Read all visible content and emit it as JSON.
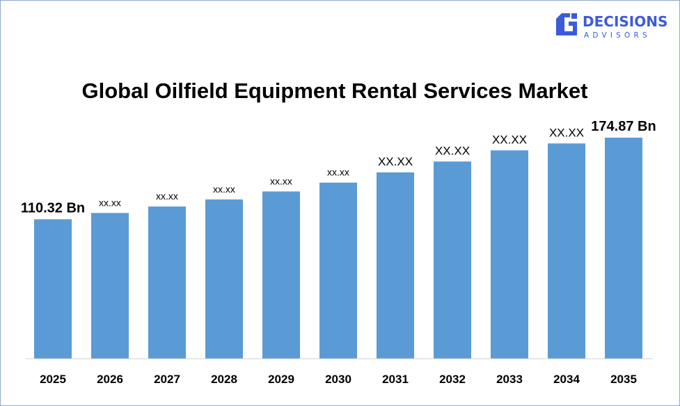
{
  "brand": {
    "name_line1": "DECISIONS",
    "name_line2": "ADVISORS",
    "color": "#3b5bdb"
  },
  "chart_data": {
    "type": "bar",
    "title": "Global Oilfield Equipment Rental Services Market",
    "xlabel": "",
    "ylabel": "",
    "categories": [
      "2025",
      "2026",
      "2027",
      "2028",
      "2029",
      "2030",
      "2031",
      "2032",
      "2033",
      "2034",
      "2035"
    ],
    "values": [
      110.32,
      115.3,
      120.4,
      126.0,
      132.3,
      139.3,
      147.4,
      156.0,
      164.8,
      170.3,
      174.87
    ],
    "data_labels": [
      "110.32 Bn",
      "xx.xx",
      "xx.xx",
      "xx.xx",
      "xx.xx",
      "xx.xx",
      "XX.XX",
      "XX.XX",
      "XX.XX",
      "XX.XX",
      "174.87 Bn"
    ],
    "ylim": [
      0,
      190
    ],
    "grid": false,
    "legend": "none",
    "bar_color": "#5b9bd5"
  }
}
